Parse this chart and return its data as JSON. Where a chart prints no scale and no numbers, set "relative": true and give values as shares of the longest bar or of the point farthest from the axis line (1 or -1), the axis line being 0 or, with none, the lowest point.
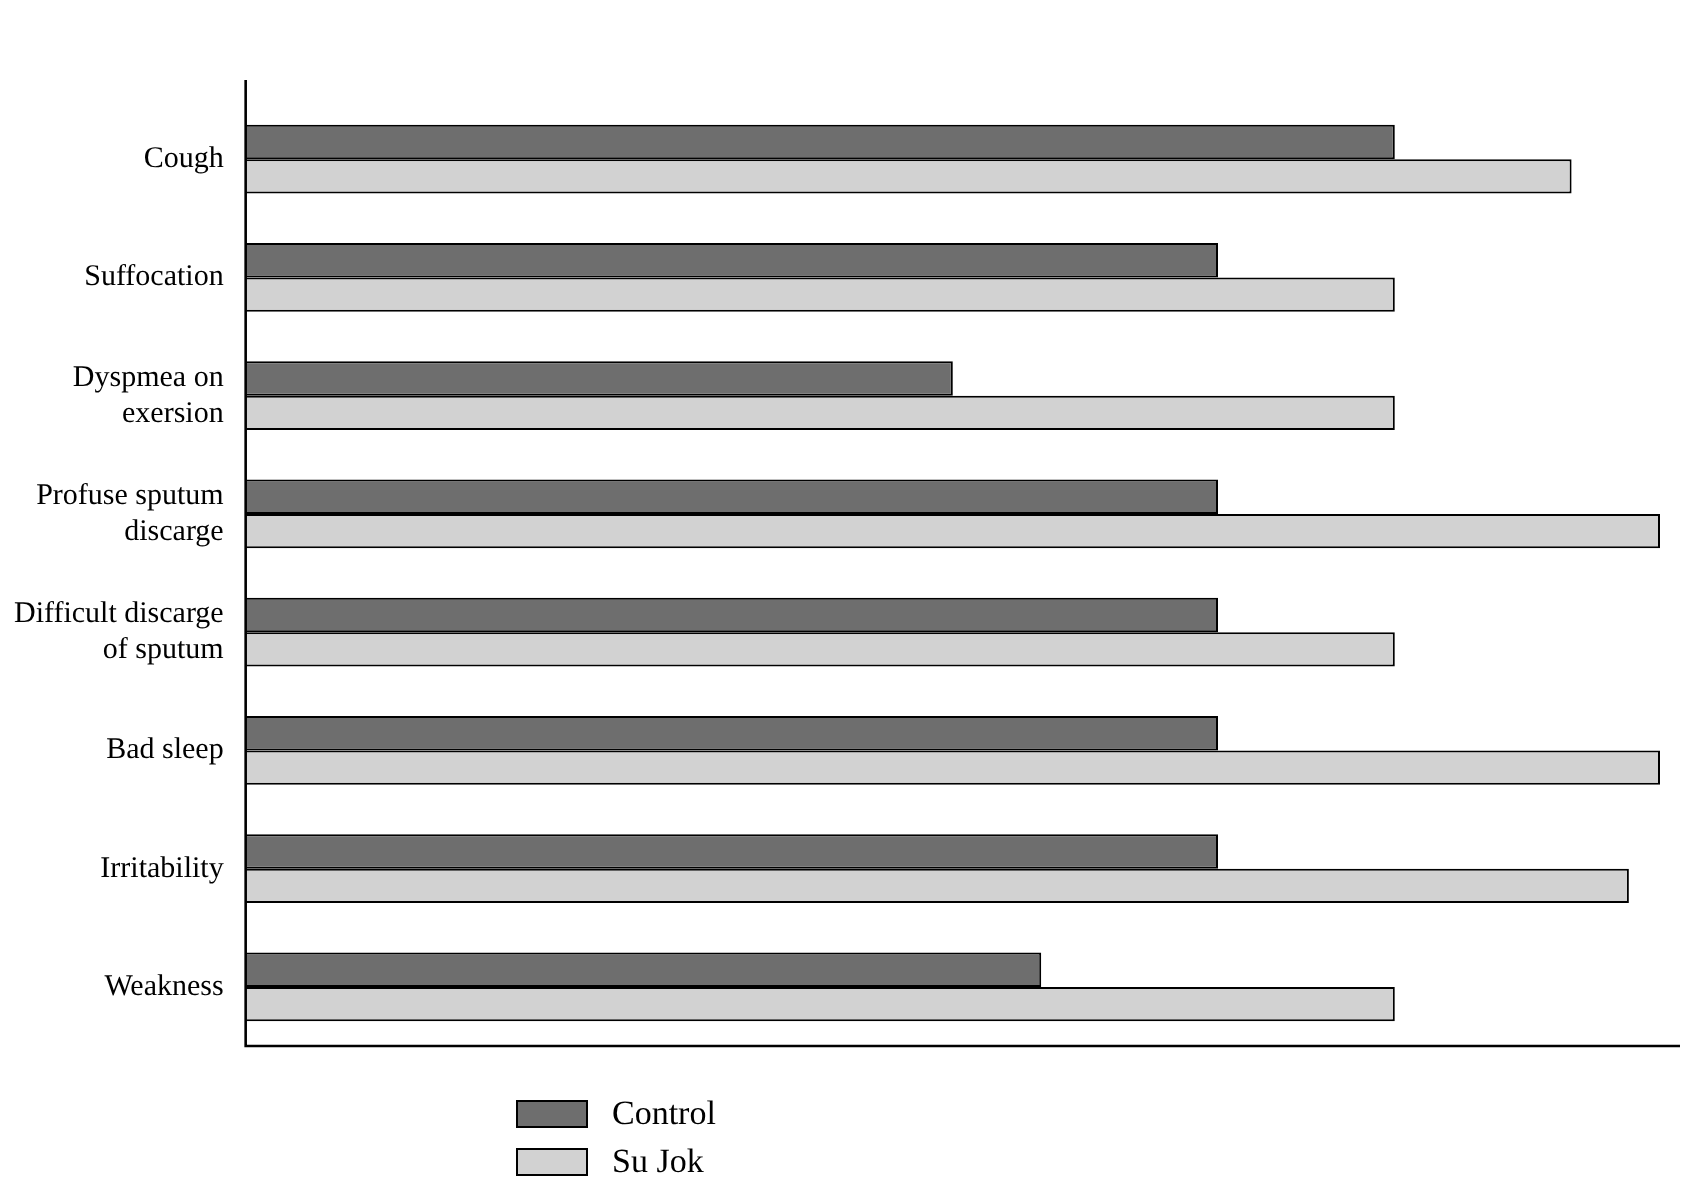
{
  "chart_data": {
    "type": "bar",
    "orientation": "horizontal",
    "relative": true,
    "legend": "bottom left",
    "categories": [
      "Cough",
      "Suffocation",
      "Dyspmea on exersion",
      "Profuse sputum discarge",
      "Difficult discarge of sputum",
      "Bad sleep",
      "Irritability",
      "Weakness"
    ],
    "series": [
      {
        "name": "Control",
        "color": "#6e6e6e",
        "values": [
          0.8125,
          0.6875,
          0.5,
          0.6875,
          0.6875,
          0.6875,
          0.6875,
          0.5625
        ]
      },
      {
        "name": "Su Jok",
        "color": "#d2d2d2",
        "values": [
          0.9375,
          0.8125,
          0.8125,
          1,
          0.8125,
          1,
          0.978,
          0.8125
        ]
      }
    ]
  }
}
